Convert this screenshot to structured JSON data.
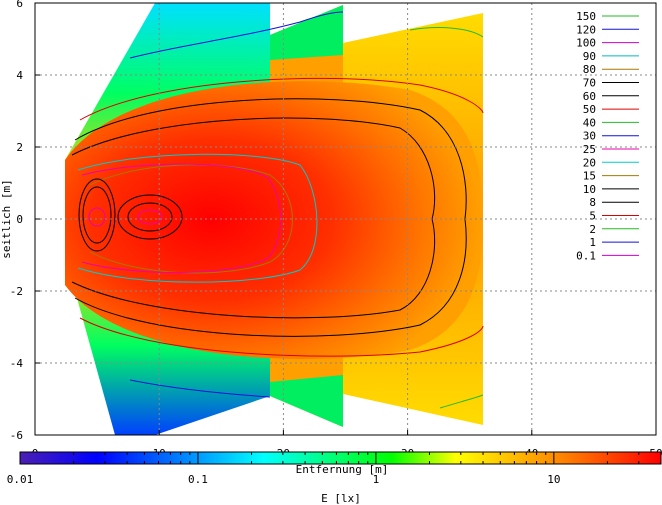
{
  "chart_data": {
    "type": "heatmap",
    "title": "",
    "xlabel": "Entfernung [m]",
    "ylabel": "seitlich [m]",
    "xlim": [
      0,
      50
    ],
    "ylim": [
      -6,
      6
    ],
    "xticks": [
      "0",
      "10",
      "20",
      "30",
      "40",
      "50"
    ],
    "yticks": [
      "-6",
      "-4",
      "-2",
      "0",
      "2",
      "4",
      "6"
    ],
    "grid": true,
    "colorbar": {
      "label": "E [lx]",
      "scale": "log",
      "range": [
        0.01,
        40
      ],
      "ticks": [
        "0.01",
        "0.1",
        "1",
        "10"
      ],
      "colors": [
        "#4b1fb3",
        "#0000ff",
        "#00ffff",
        "#00ff00",
        "#ffff00",
        "#ff8000",
        "#ff0000"
      ]
    },
    "legend": {
      "placement": "top-right",
      "entries": [
        {
          "label": "150",
          "color": "#22bb22"
        },
        {
          "label": "120",
          "color": "#1111dd"
        },
        {
          "label": "100",
          "color": "#cc00cc"
        },
        {
          "label": "90",
          "color": "#00bbbb"
        },
        {
          "label": "80",
          "color": "#aa7700"
        },
        {
          "label": "70",
          "color": "#000000"
        },
        {
          "label": "60",
          "color": "#000000"
        },
        {
          "label": "50",
          "color": "#dd0000"
        },
        {
          "label": "40",
          "color": "#22bb22"
        },
        {
          "label": "30",
          "color": "#1111dd"
        },
        {
          "label": "25",
          "color": "#ee00aa"
        },
        {
          "label": "20",
          "color": "#00cccc"
        },
        {
          "label": "15",
          "color": "#aa7700"
        },
        {
          "label": "10",
          "color": "#000000"
        },
        {
          "label": "8",
          "color": "#000000"
        },
        {
          "label": "5",
          "color": "#dd0000"
        },
        {
          "label": "2",
          "color": "#22bb22"
        },
        {
          "label": "1",
          "color": "#1111dd"
        },
        {
          "label": "0.1",
          "color": "#cc00cc"
        }
      ]
    },
    "contours": [
      {
        "level": 0.1,
        "color": "#cc00cc",
        "x_range": [
          1,
          2
        ],
        "half_width": 6
      },
      {
        "level": 1,
        "color": "#1111dd",
        "x_range": [
          6.5,
          19
        ],
        "half_width": 4.7
      },
      {
        "level": 2,
        "color": "#22bb22",
        "x_range": [
          25,
          36
        ],
        "half_width": 5.0
      },
      {
        "level": 5,
        "color": "#dd0000",
        "x_range": [
          2.5,
          36
        ],
        "half_width": 3.9
      },
      {
        "level": 8,
        "color": "#000000",
        "x_range": [
          2.5,
          36
        ],
        "half_width": 3.0
      },
      {
        "level": 10,
        "color": "#000000",
        "x_range": [
          2.5,
          33.5
        ],
        "half_width": 2.4
      },
      {
        "level": 15,
        "color": "#aa7700",
        "x_range": [
          2.5,
          26
        ],
        "half_width": 1.2
      },
      {
        "level": 20,
        "color": "#00cccc",
        "x_range": [
          2.5,
          23
        ],
        "half_width": 1.8
      },
      {
        "level": 25,
        "color": "#ee00aa",
        "x_range": [
          3,
          19.5
        ],
        "half_width": 1.5
      }
    ]
  }
}
